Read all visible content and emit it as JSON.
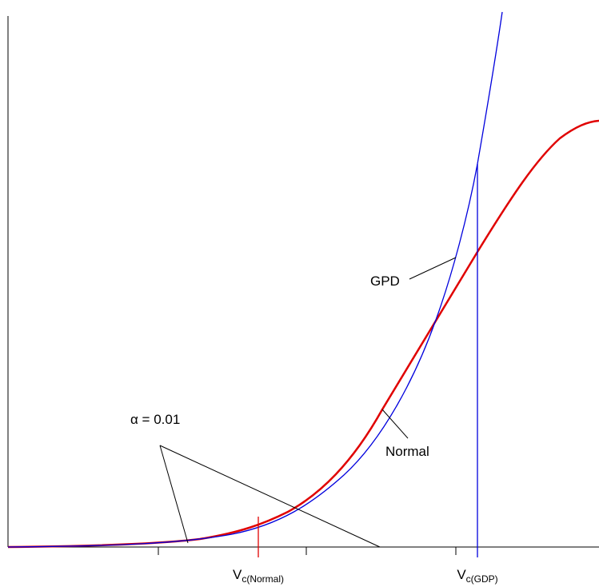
{
  "labels": {
    "gpd": "GPD",
    "normal": "Normal",
    "alpha": "α = 0.01"
  },
  "x_labels": [
    {
      "main": "V",
      "sub": "c(Normal)"
    },
    {
      "main": "V",
      "sub": "c(GDP)"
    }
  ]
}
